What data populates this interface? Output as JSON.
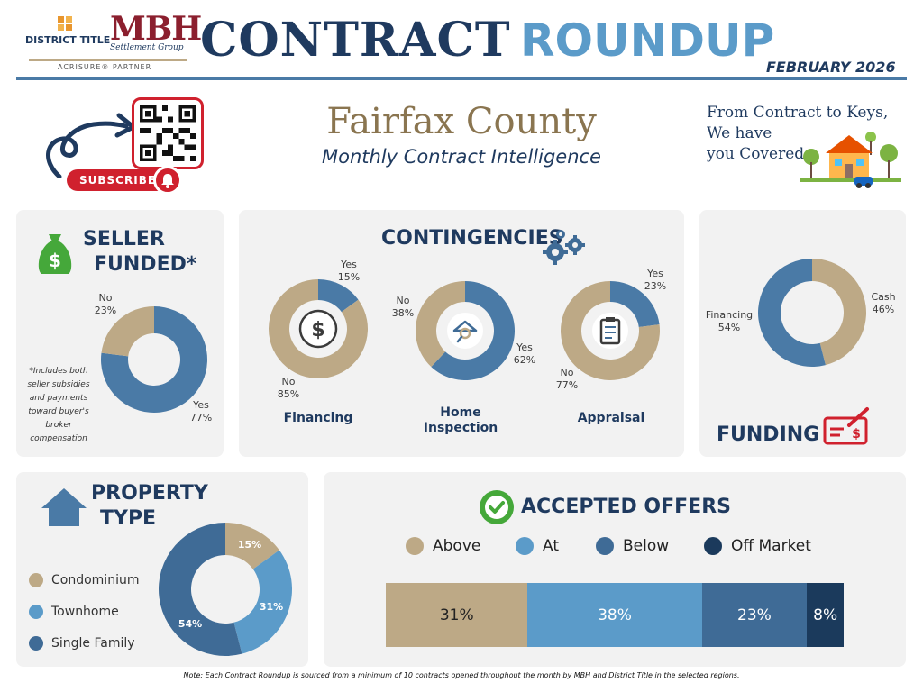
{
  "header": {
    "title_part1": "CONTRACT",
    "title_part2": "RO",
    "title_part3": "UNDUP",
    "date": "FEBRUARY 2026",
    "brand_district": "DISTRICT TITLE",
    "brand_mbh": "MBH",
    "brand_mbh_sub": "Settlement Group",
    "brand_partner": "ACRISURE® PARTNER",
    "subscribe_label": "SUBSCRIBE"
  },
  "hero": {
    "county": "Fairfax County",
    "subtitle": "Monthly Contract Intelligence",
    "tagline_line1": "From Contract to Keys,",
    "tagline_line2": "We have",
    "tagline_line3": "you Covered"
  },
  "colors": {
    "navy": "#1f3a5f",
    "tan": "#bda986",
    "blue": "#4a7aa6",
    "light_blue": "#5b9bc9",
    "steel": "#3f6b96",
    "dark_navy": "#1b3a5c",
    "red": "#d0212e",
    "green": "#45a83a",
    "panel": "#f2f2f2"
  },
  "panels": {
    "seller_title_line1": "SELLER",
    "seller_title_line2": "FUNDED*",
    "seller_note": "*Includes both seller subsidies and payments toward buyer's broker compensation",
    "contingencies_title": "CONTINGENCIES",
    "funding_title": "FUNDING",
    "property_title_line1": "PROPERTY",
    "property_title_line2": "TYPE",
    "offers_title": "ACCEPTED OFFERS"
  },
  "chart_data": [
    {
      "id": "seller_funded",
      "type": "pie",
      "title": "SELLER FUNDED*",
      "labels": [
        "Yes",
        "No"
      ],
      "values": [
        77,
        23
      ],
      "colors": [
        "#4a7aa6",
        "#bda986"
      ]
    },
    {
      "id": "contingency_financing",
      "type": "pie",
      "title": "Financing",
      "labels": [
        "Yes",
        "No"
      ],
      "values": [
        15,
        85
      ],
      "colors": [
        "#4a7aa6",
        "#bda986"
      ]
    },
    {
      "id": "contingency_home_inspection",
      "type": "pie",
      "title": "Home Inspection",
      "labels": [
        "Yes",
        "No"
      ],
      "values": [
        62,
        38
      ],
      "colors": [
        "#4a7aa6",
        "#bda986"
      ]
    },
    {
      "id": "contingency_appraisal",
      "type": "pie",
      "title": "Appraisal",
      "labels": [
        "Yes",
        "No"
      ],
      "values": [
        23,
        77
      ],
      "colors": [
        "#4a7aa6",
        "#bda986"
      ]
    },
    {
      "id": "funding",
      "type": "pie",
      "title": "FUNDING",
      "labels": [
        "Cash",
        "Financing"
      ],
      "values": [
        46,
        54
      ],
      "colors": [
        "#bda986",
        "#4a7aa6"
      ]
    },
    {
      "id": "property_type",
      "type": "pie",
      "title": "PROPERTY TYPE",
      "labels": [
        "Condominium",
        "Townhome",
        "Single Family"
      ],
      "values": [
        15,
        31,
        54
      ],
      "colors": [
        "#bda986",
        "#5b9bc9",
        "#3f6b96"
      ]
    },
    {
      "id": "accepted_offers",
      "type": "bar",
      "title": "ACCEPTED OFFERS",
      "orientation": "stacked-horizontal",
      "series": [
        {
          "name": "Above",
          "values": [
            31
          ],
          "color": "#bda986"
        },
        {
          "name": "At",
          "values": [
            38
          ],
          "color": "#5b9bc9"
        },
        {
          "name": "Below",
          "values": [
            23
          ],
          "color": "#3f6b96"
        },
        {
          "name": "Off Market",
          "values": [
            8
          ],
          "color": "#1b3a5c"
        }
      ]
    }
  ],
  "labels": {
    "seller_yes": "Yes",
    "seller_yes_pct": "77%",
    "seller_no": "No",
    "seller_no_pct": "23%",
    "fin_yes": "Yes",
    "fin_yes_pct": "15%",
    "fin_no": "No",
    "fin_no_pct": "85%",
    "fin_cat": "Financing",
    "hi_yes": "Yes",
    "hi_yes_pct": "62%",
    "hi_no": "No",
    "hi_no_pct": "38%",
    "hi_cat_line1": "Home",
    "hi_cat_line2": "Inspection",
    "ap_yes": "Yes",
    "ap_yes_pct": "23%",
    "ap_no": "No",
    "ap_no_pct": "77%",
    "ap_cat": "Appraisal",
    "fund_cash": "Cash",
    "fund_cash_pct": "46%",
    "fund_fin": "Financing",
    "fund_fin_pct": "54%",
    "prop_condo_pct": "15%",
    "prop_town_pct": "31%",
    "prop_single_pct": "54%",
    "offers_above_pct": "31%",
    "offers_at_pct": "38%",
    "offers_below_pct": "23%",
    "offers_off_pct": "8%"
  },
  "footer": {
    "note": "Note: Each Contract Roundup is sourced from a minimum of 10 contracts opened throughout the month by MBH and District Title in the selected regions."
  }
}
